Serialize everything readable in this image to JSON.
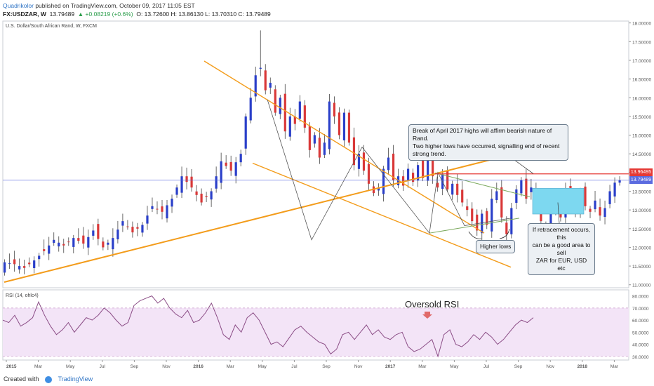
{
  "header": {
    "author": "Quadrikolor",
    "published": "published on TradingView.com, October 09, 2017 11:05 EST",
    "symbol": "FX:USDZAR, W",
    "last": "13.79489",
    "change": "▲ +0.08219 (+0.6%)",
    "ohlc": "O: 13.72600  H: 13.86130  L: 13.70310  C: 13.79489"
  },
  "footer": {
    "created_with": "Created with",
    "brand": "TradingView"
  },
  "colors": {
    "up": "#2a3fc9",
    "down": "#d93838",
    "channel": "#f39c1b",
    "triangle": "#7aa85c",
    "resistance": "#e53935",
    "current": "#5b6be0",
    "rsi": "#8b4d86",
    "rsi_band": "#f3e4f7",
    "box": "#7dd8f0"
  },
  "chart_data": [
    {
      "type": "candlestick",
      "title": "U.S. Dollar/South African Rand, W, FXCM",
      "x_ticks": [
        "2015",
        "Mar",
        "May",
        "Jul",
        "Sep",
        "Nov",
        "2016",
        "Mar",
        "May",
        "Jul",
        "Sep",
        "Nov",
        "2017",
        "Mar",
        "May",
        "Jul",
        "Sep",
        "Nov",
        "2018",
        "Mar"
      ],
      "y_ticks": [
        "18.00000",
        "17.50000",
        "17.00000",
        "16.50000",
        "16.00000",
        "15.50000",
        "15.00000",
        "14.50000",
        "14.00000",
        "13.50000",
        "13.00000",
        "12.50000",
        "12.00000",
        "11.50000",
        "11.00000"
      ],
      "ylim": [
        10.92,
        18.05
      ],
      "price_labels": [
        {
          "value": 13.96495,
          "text": "13.96495"
        },
        {
          "value": 13.79489,
          "text": "13.79489"
        }
      ],
      "close_path": [
        [
          0,
          11.6
        ],
        [
          2,
          11.55
        ],
        [
          4,
          11.45
        ],
        [
          6,
          11.65
        ],
        [
          8,
          11.9
        ],
        [
          10,
          12.2
        ],
        [
          12,
          12.05
        ],
        [
          14,
          12.25
        ],
        [
          16,
          12.1
        ],
        [
          18,
          12.45
        ],
        [
          20,
          12.0
        ],
        [
          22,
          12.25
        ],
        [
          24,
          12.7
        ],
        [
          26,
          12.4
        ],
        [
          28,
          12.6
        ],
        [
          30,
          13.1
        ],
        [
          32,
          12.95
        ],
        [
          34,
          13.3
        ],
        [
          36,
          13.9
        ],
        [
          38,
          13.6
        ],
        [
          40,
          13.2
        ],
        [
          42,
          13.5
        ],
        [
          44,
          14.3
        ],
        [
          46,
          14.05
        ],
        [
          48,
          14.5
        ],
        [
          49,
          15.5
        ],
        [
          50,
          16.0
        ],
        [
          51,
          16.6
        ],
        [
          52,
          16.8
        ],
        [
          53,
          16.2
        ],
        [
          54,
          16.4
        ],
        [
          55,
          15.6
        ],
        [
          56,
          16.0
        ],
        [
          57,
          15.1
        ],
        [
          58,
          15.5
        ],
        [
          59,
          15.3
        ],
        [
          60,
          15.9
        ],
        [
          61,
          15.2
        ],
        [
          62,
          14.6
        ],
        [
          63,
          15.0
        ],
        [
          64,
          14.4
        ],
        [
          65,
          14.8
        ],
        [
          66,
          15.9
        ],
        [
          67,
          15.5
        ],
        [
          68,
          15.0
        ],
        [
          69,
          15.6
        ],
        [
          70,
          14.8
        ],
        [
          71,
          14.2
        ],
        [
          72,
          14.5
        ],
        [
          73,
          14.05
        ],
        [
          74,
          13.7
        ],
        [
          75,
          13.45
        ],
        [
          76,
          13.6
        ],
        [
          77,
          14.1
        ],
        [
          78,
          14.4
        ],
        [
          79,
          13.8
        ],
        [
          80,
          13.9
        ],
        [
          81,
          13.65
        ],
        [
          82,
          14.1
        ],
        [
          83,
          13.75
        ],
        [
          84,
          14.2
        ],
        [
          85,
          13.85
        ],
        [
          86,
          14.35
        ],
        [
          87,
          13.9
        ],
        [
          88,
          13.6
        ],
        [
          89,
          13.95
        ],
        [
          90,
          13.55
        ],
        [
          91,
          13.7
        ],
        [
          92,
          13.4
        ],
        [
          93,
          13.2
        ],
        [
          94,
          13.0
        ],
        [
          95,
          12.7
        ],
        [
          96,
          12.45
        ],
        [
          97,
          12.9
        ],
        [
          98,
          12.6
        ],
        [
          99,
          13.3
        ],
        [
          100,
          13.5
        ],
        [
          101,
          12.8
        ],
        [
          102,
          12.35
        ],
        [
          103,
          13.05
        ],
        [
          104,
          13.55
        ],
        [
          105,
          13.8
        ],
        [
          106,
          13.3
        ],
        [
          107,
          13.6
        ],
        [
          108,
          13.1
        ],
        [
          109,
          12.7
        ],
        [
          110,
          12.55
        ],
        [
          111,
          12.95
        ],
        [
          112,
          13.2
        ],
        [
          113,
          12.8
        ],
        [
          114,
          13.5
        ],
        [
          115,
          13.05
        ],
        [
          116,
          12.95
        ],
        [
          117,
          13.45
        ],
        [
          118,
          13.1
        ],
        [
          119,
          12.95
        ],
        [
          120,
          13.25
        ],
        [
          121,
          12.85
        ],
        [
          122,
          13.05
        ],
        [
          123,
          13.5
        ],
        [
          124,
          13.73
        ],
        [
          125,
          13.79
        ]
      ],
      "annotations": [
        "Break of April 2017 highs will affirm bearish nature of Rand.\nTwo higher lows have occurred, signalling end of recent strong trend.",
        "If retracement occurs, this\ncan be a good area to sell\nZAR for EUR, USD etc",
        "Higher lows"
      ]
    },
    {
      "type": "line",
      "title": "RSI (14, ohlc4)",
      "y_ticks": [
        "80.0000",
        "70.0000",
        "60.0000",
        "50.0000",
        "40.0000",
        "30.0000"
      ],
      "ylim": [
        27,
        85
      ],
      "band": [
        30,
        70
      ],
      "values": [
        60,
        58,
        64,
        55,
        58,
        62,
        75,
        64,
        55,
        48,
        52,
        58,
        50,
        56,
        62,
        60,
        64,
        70,
        66,
        60,
        55,
        58,
        72,
        76,
        78,
        80,
        74,
        78,
        70,
        65,
        62,
        68,
        58,
        60,
        66,
        74,
        62,
        48,
        44,
        56,
        50,
        62,
        66,
        60,
        50,
        40,
        42,
        38,
        45,
        52,
        55,
        50,
        46,
        42,
        40,
        32,
        36,
        48,
        50,
        44,
        50,
        56,
        48,
        52,
        46,
        44,
        48,
        50,
        38,
        34,
        36,
        40,
        44,
        30,
        48,
        52,
        40,
        38,
        42,
        48,
        44,
        50,
        46,
        40,
        44,
        50,
        56,
        60,
        58,
        62
      ],
      "annotation": "Oversold RSI"
    }
  ]
}
